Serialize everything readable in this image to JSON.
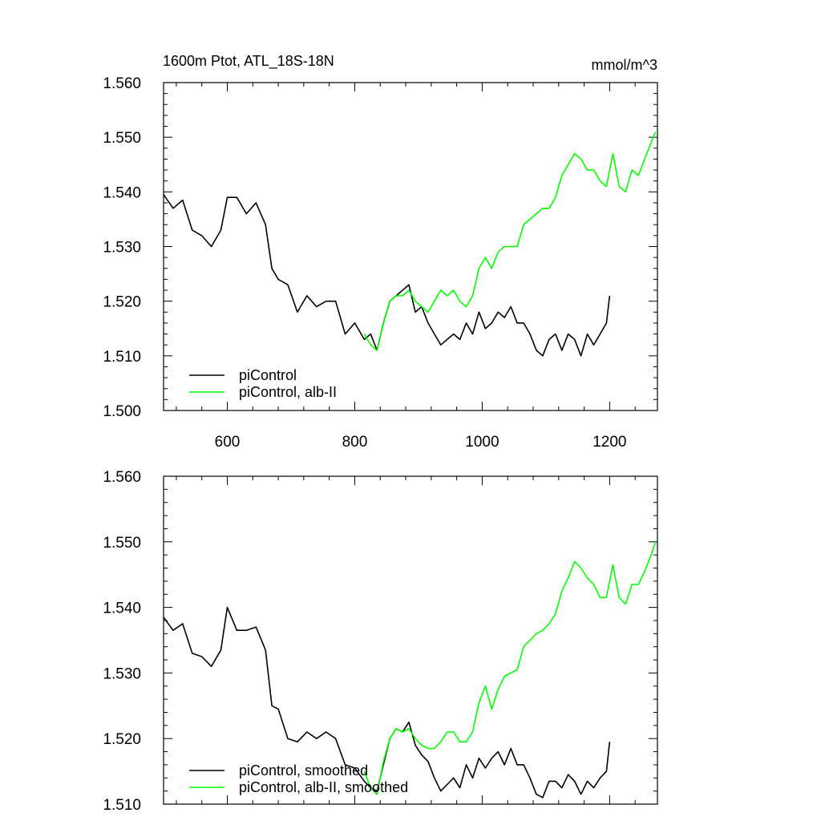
{
  "chart_data": [
    {
      "type": "line",
      "title": "1600m Ptot, ATL_18S-18N",
      "units": "mmol/m^3",
      "xlim": [
        500,
        1275
      ],
      "ylim": [
        1.5,
        1.56
      ],
      "xticks": [
        600,
        800,
        1000,
        1200
      ],
      "xtick_labels": [
        "600",
        "800",
        "1000",
        "1200"
      ],
      "yticks": [
        1.5,
        1.51,
        1.52,
        1.53,
        1.54,
        1.55,
        1.56
      ],
      "ytick_labels": [
        "1.500",
        "1.510",
        "1.520",
        "1.530",
        "1.540",
        "1.550",
        "1.560"
      ],
      "legend_position": "bottom-left",
      "series": [
        {
          "name": "piControl",
          "color": "#000000",
          "x": [
            500,
            515,
            530,
            545,
            560,
            575,
            590,
            600,
            615,
            630,
            645,
            660,
            670,
            680,
            695,
            710,
            725,
            740,
            755,
            770,
            785,
            800,
            815,
            825,
            835,
            845,
            855,
            865,
            875,
            885,
            895,
            905,
            915,
            925,
            935,
            945,
            955,
            965,
            975,
            985,
            995,
            1005,
            1015,
            1025,
            1035,
            1045,
            1055,
            1065,
            1075,
            1085,
            1095,
            1105,
            1115,
            1125,
            1135,
            1145,
            1155,
            1165,
            1175,
            1185,
            1195,
            1200
          ],
          "y": [
            1.5395,
            1.537,
            1.5385,
            1.533,
            1.532,
            1.53,
            1.533,
            1.539,
            1.539,
            1.536,
            1.538,
            1.534,
            1.526,
            1.524,
            1.523,
            1.518,
            1.521,
            1.519,
            1.52,
            1.52,
            1.514,
            1.516,
            1.513,
            1.514,
            1.511,
            1.516,
            1.52,
            1.521,
            1.522,
            1.523,
            1.518,
            1.519,
            1.516,
            1.514,
            1.512,
            1.513,
            1.514,
            1.513,
            1.516,
            1.514,
            1.518,
            1.515,
            1.516,
            1.518,
            1.517,
            1.519,
            1.516,
            1.516,
            1.514,
            1.511,
            1.51,
            1.513,
            1.514,
            1.511,
            1.514,
            1.513,
            1.51,
            1.514,
            1.512,
            1.514,
            1.516,
            1.521
          ]
        },
        {
          "name": "piControl, alb-II",
          "color": "#00ff00",
          "x": [
            815,
            825,
            835,
            845,
            855,
            865,
            875,
            885,
            895,
            905,
            915,
            925,
            935,
            945,
            955,
            965,
            975,
            985,
            995,
            1005,
            1015,
            1025,
            1035,
            1045,
            1055,
            1065,
            1075,
            1085,
            1095,
            1105,
            1115,
            1125,
            1135,
            1145,
            1155,
            1165,
            1175,
            1185,
            1195,
            1205,
            1215,
            1225,
            1235,
            1245,
            1255,
            1265,
            1272
          ],
          "y": [
            1.514,
            1.512,
            1.511,
            1.516,
            1.52,
            1.521,
            1.521,
            1.522,
            1.52,
            1.519,
            1.518,
            1.52,
            1.522,
            1.521,
            1.522,
            1.52,
            1.519,
            1.521,
            1.526,
            1.528,
            1.526,
            1.529,
            1.53,
            1.53,
            1.53,
            1.534,
            1.535,
            1.536,
            1.537,
            1.537,
            1.539,
            1.543,
            1.545,
            1.547,
            1.546,
            1.544,
            1.544,
            1.542,
            1.541,
            1.547,
            1.541,
            1.54,
            1.544,
            1.543,
            1.546,
            1.549,
            1.551
          ]
        }
      ]
    },
    {
      "type": "line",
      "title": "",
      "xlim": [
        500,
        1275
      ],
      "ylim": [
        1.51,
        1.56
      ],
      "yticks": [
        1.51,
        1.52,
        1.53,
        1.54,
        1.55,
        1.56
      ],
      "ytick_labels": [
        "1.510",
        "1.520",
        "1.530",
        "1.540",
        "1.550",
        "1.560"
      ],
      "legend_position": "bottom-left",
      "series": [
        {
          "name": "piControl, smoothed",
          "color": "#000000",
          "x": [
            500,
            515,
            530,
            545,
            560,
            575,
            590,
            600,
            615,
            630,
            645,
            660,
            670,
            680,
            695,
            710,
            725,
            740,
            755,
            770,
            785,
            800,
            815,
            825,
            835,
            845,
            855,
            865,
            875,
            885,
            895,
            905,
            915,
            925,
            935,
            945,
            955,
            965,
            975,
            985,
            995,
            1005,
            1015,
            1025,
            1035,
            1045,
            1055,
            1065,
            1075,
            1085,
            1095,
            1105,
            1115,
            1125,
            1135,
            1145,
            1155,
            1165,
            1175,
            1185,
            1195,
            1200
          ],
          "y": [
            1.5385,
            1.5365,
            1.5375,
            1.533,
            1.5325,
            1.531,
            1.5335,
            1.54,
            1.5365,
            1.5365,
            1.537,
            1.5335,
            1.525,
            1.5245,
            1.52,
            1.5195,
            1.521,
            1.52,
            1.521,
            1.52,
            1.516,
            1.5155,
            1.5135,
            1.5125,
            1.512,
            1.516,
            1.52,
            1.5215,
            1.521,
            1.5225,
            1.519,
            1.5175,
            1.5165,
            1.514,
            1.512,
            1.513,
            1.514,
            1.5125,
            1.516,
            1.514,
            1.517,
            1.5155,
            1.517,
            1.518,
            1.516,
            1.5185,
            1.516,
            1.516,
            1.514,
            1.5115,
            1.511,
            1.5135,
            1.5135,
            1.5125,
            1.5145,
            1.5135,
            1.5115,
            1.5135,
            1.5125,
            1.514,
            1.515,
            1.5195
          ]
        },
        {
          "name": "piControl, alb-II, smoothed",
          "color": "#00ff00",
          "x": [
            815,
            825,
            835,
            845,
            855,
            865,
            875,
            885,
            895,
            905,
            915,
            925,
            935,
            945,
            955,
            965,
            975,
            985,
            995,
            1005,
            1015,
            1025,
            1035,
            1045,
            1055,
            1065,
            1075,
            1085,
            1095,
            1105,
            1115,
            1125,
            1135,
            1145,
            1155,
            1165,
            1175,
            1185,
            1195,
            1205,
            1215,
            1225,
            1235,
            1245,
            1255,
            1265,
            1272
          ],
          "y": [
            1.515,
            1.5125,
            1.5115,
            1.5165,
            1.52,
            1.5215,
            1.521,
            1.5215,
            1.52,
            1.519,
            1.5185,
            1.5185,
            1.5195,
            1.521,
            1.521,
            1.5195,
            1.5195,
            1.521,
            1.5255,
            1.528,
            1.5245,
            1.5275,
            1.5295,
            1.53,
            1.5305,
            1.534,
            1.535,
            1.536,
            1.5365,
            1.5375,
            1.539,
            1.5425,
            1.5445,
            1.547,
            1.546,
            1.5445,
            1.5435,
            1.5415,
            1.5415,
            1.5465,
            1.5415,
            1.5405,
            1.5435,
            1.5435,
            1.5455,
            1.548,
            1.55
          ]
        }
      ]
    }
  ]
}
